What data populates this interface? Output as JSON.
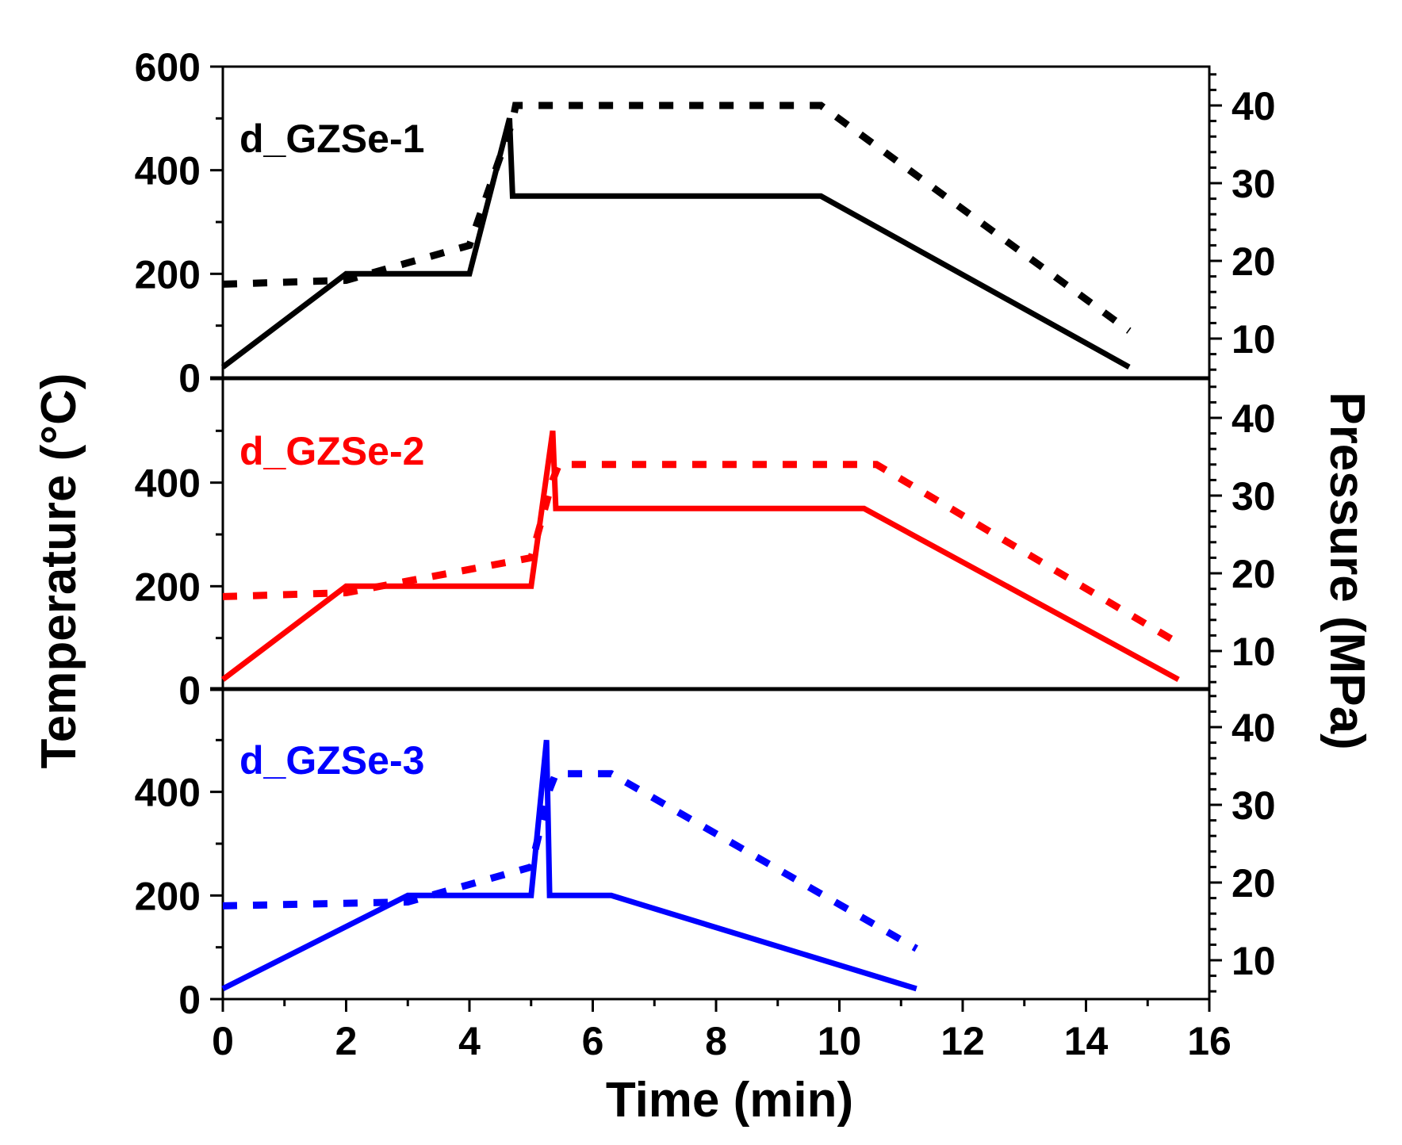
{
  "chart_data": {
    "type": "line",
    "x_axis": {
      "label": "Time (min)",
      "range": [
        0,
        16
      ],
      "ticks": [
        0,
        2,
        4,
        6,
        8,
        10,
        12,
        14,
        16
      ]
    },
    "y_left": {
      "label": "Temperature (°C)",
      "top_panel_range": [
        0,
        600
      ],
      "other_panel_range": [
        0,
        600
      ],
      "top_panel_ticks": [
        0,
        200,
        400,
        600
      ],
      "other_panel_ticks": [
        0,
        200,
        400
      ]
    },
    "y_right": {
      "label": "Pressure (MPa)",
      "range": [
        5,
        45
      ],
      "ticks": [
        10,
        20,
        30,
        40
      ]
    },
    "panels": [
      {
        "label": "d_GZSe-1",
        "color": "#000000",
        "temperature": {
          "x": [
            0,
            2,
            4,
            4.65,
            4.7,
            9.7,
            14.7
          ],
          "y": [
            20,
            200,
            200,
            500,
            350,
            350,
            20
          ]
        },
        "pressure": {
          "x": [
            0,
            2,
            4,
            4.7,
            4.75,
            9.7,
            14.7
          ],
          "y": [
            17,
            17.5,
            22,
            38,
            40,
            40,
            11
          ]
        }
      },
      {
        "label": "d_GZSe-2",
        "color": "#ff0000",
        "temperature": {
          "x": [
            0,
            2,
            5,
            5.35,
            5.4,
            10.4,
            15.5
          ],
          "y": [
            20,
            200,
            200,
            500,
            350,
            350,
            20
          ]
        },
        "pressure": {
          "x": [
            0,
            2,
            5,
            5.35,
            5.45,
            10.6,
            15.5
          ],
          "y": [
            17,
            17.5,
            22,
            32,
            34,
            34,
            11
          ]
        }
      },
      {
        "label": "d_GZSe-3",
        "color": "#0000ff",
        "temperature": {
          "x": [
            0,
            3,
            5,
            5.25,
            5.3,
            6.3,
            11.25
          ],
          "y": [
            20,
            200,
            200,
            500,
            200,
            200,
            20
          ]
        },
        "pressure": {
          "x": [
            0,
            3,
            5,
            5.3,
            5.4,
            6.3,
            11.25
          ],
          "y": [
            17,
            17.5,
            22,
            32,
            34,
            34,
            11.5
          ]
        }
      }
    ]
  }
}
